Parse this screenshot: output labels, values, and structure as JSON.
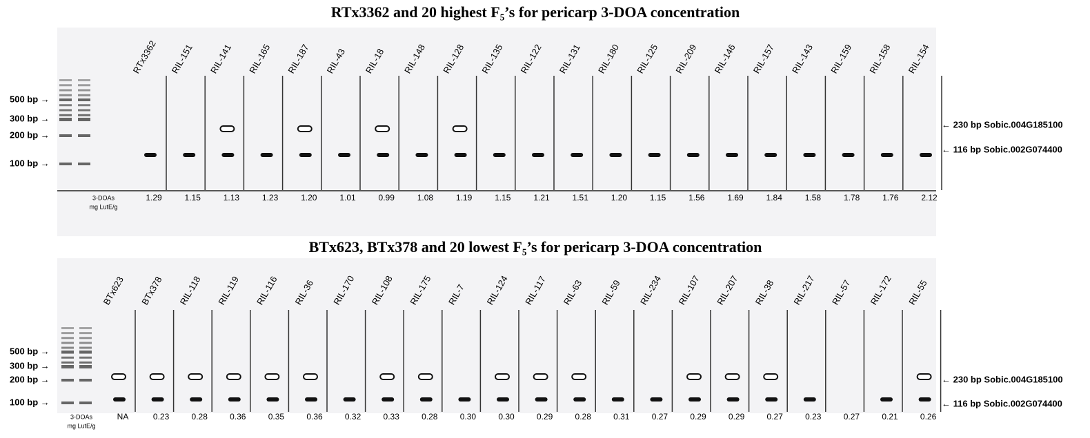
{
  "panels": [
    {
      "title": "RTx3362 and 20 highest F₅’s for pericarp 3-DOA concentration",
      "lanes": [
        "RTx3362",
        "RIL-151",
        "RIL-141",
        "RIL-165",
        "RIL-187",
        "RIL-43",
        "RIL-18",
        "RIL-148",
        "RIL-128",
        "RIL-135",
        "RIL-122",
        "RIL-131",
        "RIL-180",
        "RIL-125",
        "RIL-209",
        "RIL-146",
        "RIL-157",
        "RIL-143",
        "RIL-159",
        "RIL-158",
        "RIL-154"
      ],
      "values": [
        "1.29",
        "1.15",
        "1.13",
        "1.23",
        "1.20",
        "1.01",
        "0.99",
        "1.08",
        "1.19",
        "1.15",
        "1.21",
        "1.51",
        "1.20",
        "1.15",
        "1.56",
        "1.69",
        "1.84",
        "1.58",
        "1.78",
        "1.76",
        "2.12"
      ],
      "value_header": [
        "3-DOAs",
        "mg LutE/g"
      ],
      "size_labels": [
        "500 bp →",
        "300 bp →",
        "200 bp →",
        "100 bp →"
      ],
      "band_labels": [
        "← 230 bp Sobic.004G185100",
        "← 116 bp Sobic.002G074400"
      ]
    },
    {
      "title": "BTx623, BTx378 and 20 lowest F₅’s for pericarp 3-DOA concentration",
      "lanes": [
        "BTx623",
        "BTx378",
        "RIL-118",
        "RIL-119",
        "RIL-116",
        "RIL-36",
        "RIL-170",
        "RIL-108",
        "RIL-175",
        "RIL-7",
        "RIL-124",
        "RIL-117",
        "RIL-63",
        "RIL-59",
        "RIL-234",
        "RIL-107",
        "RIL-207",
        "RIL-38",
        "RIL-217",
        "RIL-57",
        "RIL-172",
        "RIL-55"
      ],
      "values": [
        "NA",
        "0.23",
        "0.28",
        "0.36",
        "0.35",
        "0.36",
        "0.32",
        "0.33",
        "0.28",
        "0.30",
        "0.30",
        "0.29",
        "0.28",
        "0.31",
        "0.27",
        "0.29",
        "0.29",
        "0.27",
        "0.23",
        "0.27",
        "0.21",
        "0.26"
      ],
      "value_header": [
        "3-DOAs",
        "mg LutE/g"
      ],
      "size_labels": [
        "500 bp →",
        "300 bp →",
        "200 bp →",
        "100 bp →"
      ],
      "band_labels": [
        "← 230 bp Sobic.004G185100",
        "← 116 bp Sobic.002G074400"
      ]
    }
  ]
}
